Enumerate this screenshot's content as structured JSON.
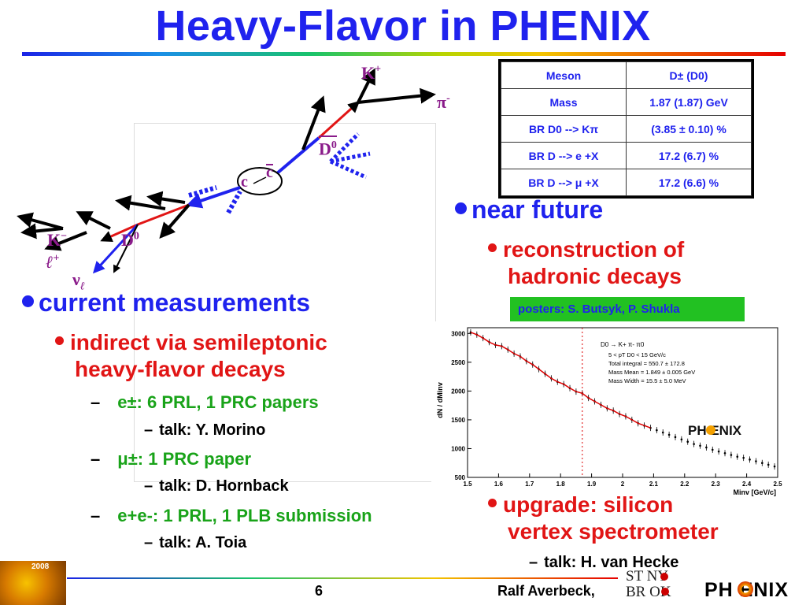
{
  "title": "Heavy-Flavor in PHENIX",
  "diagram": {
    "k_plus": "K",
    "k_plus_sup": "+",
    "pi_minus": "π",
    "pi_minus_sup": "-",
    "d0_bar": "D",
    "d0_bar_sup": "0",
    "c_label": "c",
    "cbar_label": "c",
    "k_minus": "K",
    "k_minus_sup": "−",
    "d0": "D",
    "d0_sup": "0",
    "lepton": "ℓ",
    "lepton_sup": "+",
    "nu": "ν",
    "nu_sub": "ℓ"
  },
  "meson_table": {
    "rows": [
      [
        "Meson",
        "D± (D0)"
      ],
      [
        "Mass",
        "1.87 (1.87) GeV"
      ],
      [
        "BR D0 --> Kπ",
        "(3.85 ± 0.10) %"
      ],
      [
        "BR D --> e +X",
        "17.2 (6.7) %"
      ],
      [
        "BR D --> μ +X",
        "17.2 (6.6) %"
      ]
    ]
  },
  "near_future": {
    "heading": "near future",
    "item1_line1": "reconstruction of",
    "item1_line2": "hadronic decays",
    "poster": "posters: S. Butsyk, P. Shukla",
    "item2_line1": "upgrade: silicon",
    "item2_line2": "vertex spectrometer",
    "talk": "talk: H. van Hecke"
  },
  "current": {
    "heading": "current measurements",
    "sub_line1": "indirect via semileptonic",
    "sub_line2": "heavy-flavor decays",
    "e_item": "e±: 6 PRL, 1 PRC papers",
    "e_talk": "talk: Y. Morino",
    "mu_item": "μ±: 1 PRC paper",
    "mu_talk": "talk: D. Hornback",
    "ee_item": "e+e-: 1 PRL, 1 PLB submission",
    "ee_talk": "talk: A. Toia"
  },
  "plot": {
    "y_label": "dN / dMinv",
    "x_label": "Minv [GeV/c]",
    "legend_title": "D0 → K+ π- π0",
    "legend_lines": [
      "5 < pT D0 < 15 GeV/c",
      "Total integral = 550.7 ± 172.8",
      "Mass Mean = 1.849 ± 0.005 GeV",
      "Mass Width = 15.5 ± 5.0 MeV"
    ],
    "logo": "PH ENIX",
    "chart_data": {
      "type": "scatter",
      "xlim": [
        1.5,
        2.5
      ],
      "ylim": [
        500,
        3100
      ],
      "x_ticks": [
        1.5,
        1.6,
        1.7,
        1.8,
        1.9,
        2,
        2.1,
        2.2,
        2.3,
        2.4,
        2.5
      ],
      "y_ticks": [
        500,
        1000,
        1500,
        2000,
        2500,
        3000
      ],
      "marker_line_x": 1.87,
      "x": [
        1.51,
        1.53,
        1.55,
        1.57,
        1.59,
        1.61,
        1.63,
        1.65,
        1.67,
        1.69,
        1.71,
        1.73,
        1.75,
        1.77,
        1.79,
        1.81,
        1.83,
        1.85,
        1.87,
        1.89,
        1.91,
        1.93,
        1.95,
        1.97,
        1.99,
        2.01,
        2.03,
        2.05,
        2.07,
        2.09,
        2.11,
        2.13,
        2.15,
        2.17,
        2.19,
        2.21,
        2.23,
        2.25,
        2.27,
        2.29,
        2.31,
        2.33,
        2.35,
        2.37,
        2.39,
        2.41,
        2.43,
        2.45,
        2.47,
        2.49
      ],
      "y": [
        3020,
        2980,
        2920,
        2850,
        2800,
        2780,
        2720,
        2650,
        2600,
        2520,
        2460,
        2380,
        2300,
        2220,
        2160,
        2120,
        2050,
        1990,
        1960,
        1880,
        1820,
        1760,
        1700,
        1660,
        1600,
        1560,
        1500,
        1440,
        1400,
        1360,
        1320,
        1280,
        1240,
        1200,
        1160,
        1120,
        1080,
        1050,
        1020,
        980,
        950,
        920,
        890,
        860,
        840,
        810,
        780,
        750,
        720,
        690
      ]
    }
  },
  "footer": {
    "page": "6",
    "author": "Ralf Averbeck,",
    "stony_top": "ST NY",
    "stony_bottom": "BR  OK",
    "phenix": "PH ENIX",
    "left_logo_year": "2008"
  }
}
